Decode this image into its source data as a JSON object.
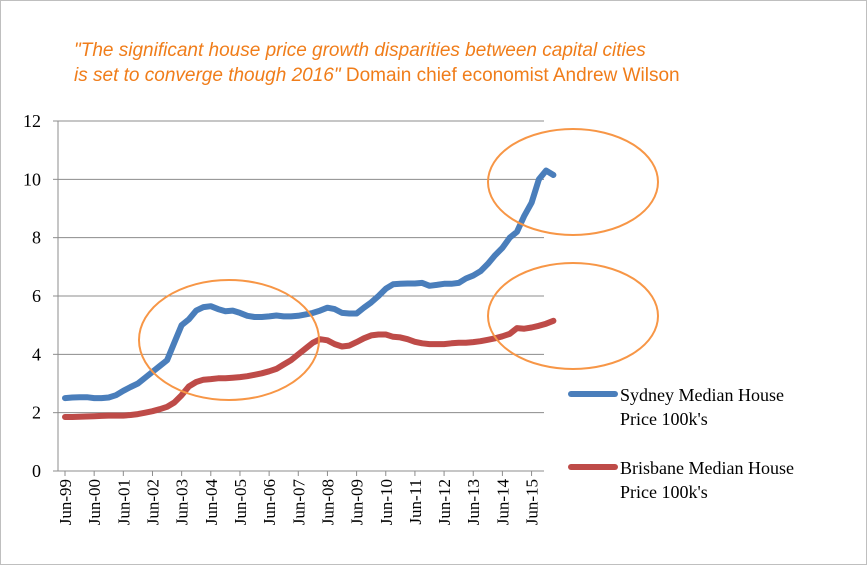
{
  "title": {
    "quote_line1": "\"The significant house price growth disparities between capital cities",
    "quote_line2": "is set to converge though 2016\"",
    "attribution": "Domain chief economist Andrew Wilson"
  },
  "colors": {
    "sydney": "#4a7ebb",
    "brisbane": "#be4b48",
    "highlight": "#f79646",
    "title": "#f07d1a"
  },
  "chart_data": {
    "type": "line",
    "title": "\"The significant house price growth disparities between capital cities is set to converge though 2016\" Domain chief economist Andrew Wilson",
    "xlabel": "",
    "ylabel": "",
    "ylim": [
      0,
      12
    ],
    "yticks": [
      0,
      2,
      4,
      6,
      8,
      10,
      12
    ],
    "grid": true,
    "legend_position": "right",
    "x_tick_labels": [
      "Jun-99",
      "Jun-00",
      "Jun-01",
      "Jun-02",
      "Jun-03",
      "Jun-04",
      "Jun-05",
      "Jun-06",
      "Jun-07",
      "Jun-08",
      "Jun-09",
      "Jun-10",
      "Jun-11",
      "Jun-12",
      "Jun-13",
      "Jun-14",
      "Jun-15"
    ],
    "x_start": "Jun-99",
    "x_step": "quarter",
    "series": [
      {
        "name": "Sydney Median House Price 100k's",
        "values": [
          2.5,
          2.52,
          2.53,
          2.53,
          2.5,
          2.5,
          2.52,
          2.6,
          2.75,
          2.88,
          3.0,
          3.2,
          3.4,
          3.6,
          3.8,
          4.4,
          5.0,
          5.2,
          5.5,
          5.62,
          5.65,
          5.55,
          5.48,
          5.5,
          5.42,
          5.32,
          5.28,
          5.28,
          5.3,
          5.33,
          5.3,
          5.3,
          5.32,
          5.37,
          5.42,
          5.5,
          5.6,
          5.55,
          5.42,
          5.4,
          5.4,
          5.6,
          5.78,
          6.0,
          6.25,
          6.4,
          6.42,
          6.43,
          6.43,
          6.45,
          6.35,
          6.38,
          6.42,
          6.42,
          6.45,
          6.6,
          6.7,
          6.85,
          7.1,
          7.4,
          7.65,
          8.0,
          8.2,
          8.75,
          9.2,
          10.0,
          10.3,
          10.15
        ]
      },
      {
        "name": "Brisbane Median House Price 100k's",
        "values": [
          1.85,
          1.85,
          1.86,
          1.87,
          1.88,
          1.89,
          1.9,
          1.9,
          1.9,
          1.92,
          1.95,
          2.0,
          2.05,
          2.12,
          2.2,
          2.35,
          2.6,
          2.9,
          3.05,
          3.13,
          3.15,
          3.18,
          3.18,
          3.2,
          3.22,
          3.25,
          3.3,
          3.35,
          3.42,
          3.5,
          3.65,
          3.8,
          4.0,
          4.2,
          4.4,
          4.52,
          4.48,
          4.35,
          4.27,
          4.3,
          4.42,
          4.55,
          4.65,
          4.68,
          4.68,
          4.6,
          4.58,
          4.52,
          4.43,
          4.38,
          4.35,
          4.35,
          4.35,
          4.38,
          4.4,
          4.4,
          4.42,
          4.45,
          4.5,
          4.55,
          4.62,
          4.7,
          4.9,
          4.88,
          4.92,
          4.98,
          5.05,
          5.15
        ]
      }
    ],
    "annotations": [
      {
        "type": "ellipse",
        "label": "highlight-ellipse-2003-2007"
      },
      {
        "type": "ellipse",
        "label": "highlight-ellipse-sydney-2015"
      },
      {
        "type": "ellipse",
        "label": "highlight-ellipse-brisbane-2015"
      }
    ]
  }
}
